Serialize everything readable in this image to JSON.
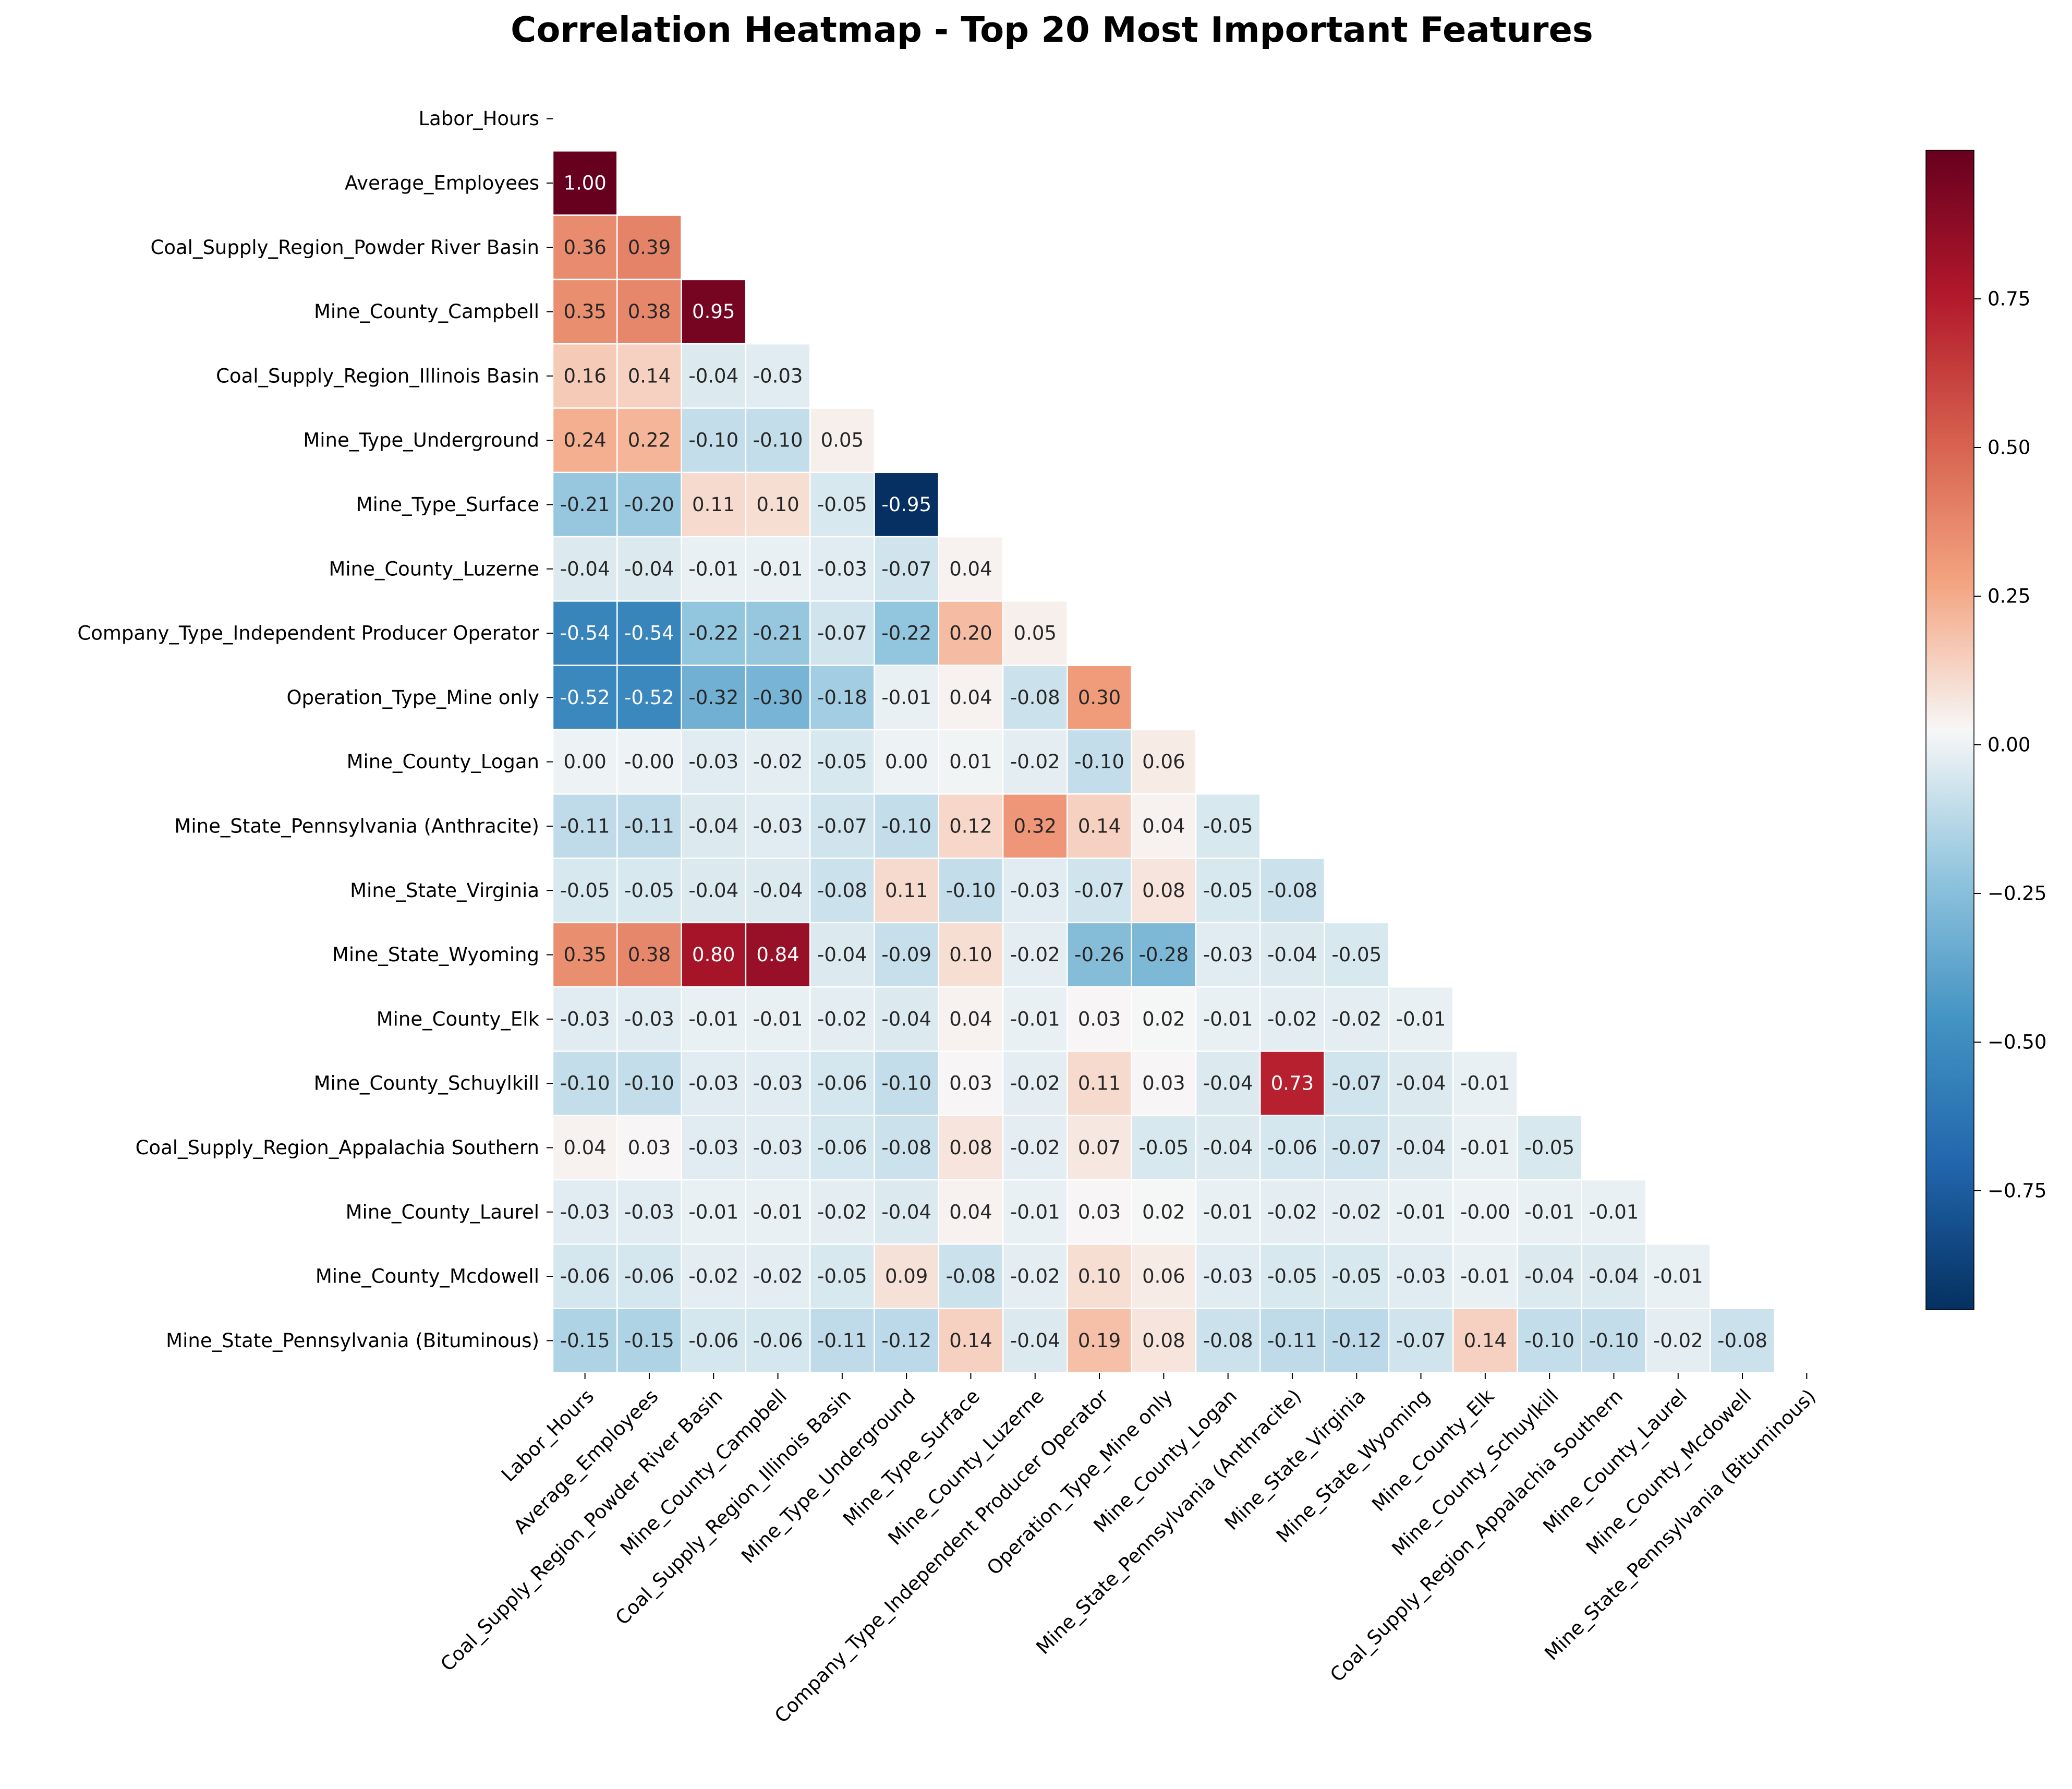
{
  "chart_data": {
    "type": "heatmap",
    "title": "Correlation Heatmap - Top 20 Most Important Features",
    "xlabel": "",
    "ylabel": "",
    "mask": "upper-triangle",
    "labels": [
      "Labor_Hours",
      "Average_Employees",
      "Coal_Supply_Region_Powder River Basin",
      "Mine_County_Campbell",
      "Coal_Supply_Region_Illinois Basin",
      "Mine_Type_Underground",
      "Mine_Type_Surface",
      "Mine_County_Luzerne",
      "Company_Type_Independent Producer Operator",
      "Operation_Type_Mine only",
      "Mine_County_Logan",
      "Mine_State_Pennsylvania (Anthracite)",
      "Mine_State_Virginia",
      "Mine_State_Wyoming",
      "Mine_County_Elk",
      "Mine_County_Schuylkill",
      "Coal_Supply_Region_Appalachia Southern",
      "Mine_County_Laurel",
      "Mine_County_Mcdowell",
      "Mine_State_Pennsylvania (Bituminous)"
    ],
    "rows": [
      [],
      [
        1.0
      ],
      [
        0.36,
        0.39
      ],
      [
        0.35,
        0.38,
        0.95
      ],
      [
        0.16,
        0.14,
        -0.04,
        -0.03
      ],
      [
        0.24,
        0.22,
        -0.1,
        -0.1,
        0.05
      ],
      [
        -0.21,
        -0.2,
        0.11,
        0.1,
        -0.05,
        -0.95
      ],
      [
        -0.04,
        -0.04,
        -0.01,
        -0.01,
        -0.03,
        -0.07,
        0.04
      ],
      [
        -0.54,
        -0.54,
        -0.22,
        -0.21,
        -0.07,
        -0.22,
        0.2,
        0.05
      ],
      [
        -0.52,
        -0.52,
        -0.32,
        -0.3,
        -0.18,
        -0.01,
        0.04,
        -0.08,
        0.3
      ],
      [
        0.0,
        -0.0,
        -0.03,
        -0.02,
        -0.05,
        0.0,
        0.01,
        -0.02,
        -0.1,
        0.06
      ],
      [
        -0.11,
        -0.11,
        -0.04,
        -0.03,
        -0.07,
        -0.1,
        0.12,
        0.32,
        0.14,
        0.04,
        -0.05
      ],
      [
        -0.05,
        -0.05,
        -0.04,
        -0.04,
        -0.08,
        0.11,
        -0.1,
        -0.03,
        -0.07,
        0.08,
        -0.05,
        -0.08
      ],
      [
        0.35,
        0.38,
        0.8,
        0.84,
        -0.04,
        -0.09,
        0.1,
        -0.02,
        -0.26,
        -0.28,
        -0.03,
        -0.04,
        -0.05
      ],
      [
        -0.03,
        -0.03,
        -0.01,
        -0.01,
        -0.02,
        -0.04,
        0.04,
        -0.01,
        0.03,
        0.02,
        -0.01,
        -0.02,
        -0.02,
        -0.01
      ],
      [
        -0.1,
        -0.1,
        -0.03,
        -0.03,
        -0.06,
        -0.1,
        0.03,
        -0.02,
        0.11,
        0.03,
        -0.04,
        0.73,
        -0.07,
        -0.04,
        -0.01
      ],
      [
        0.04,
        0.03,
        -0.03,
        -0.03,
        -0.06,
        -0.08,
        0.08,
        -0.02,
        0.07,
        -0.05,
        -0.04,
        -0.06,
        -0.07,
        -0.04,
        -0.01,
        -0.05
      ],
      [
        -0.03,
        -0.03,
        -0.01,
        -0.01,
        -0.02,
        -0.04,
        0.04,
        -0.01,
        0.03,
        0.02,
        -0.01,
        -0.02,
        -0.02,
        -0.01,
        -0.0,
        -0.01,
        -0.01
      ],
      [
        -0.06,
        -0.06,
        -0.02,
        -0.02,
        -0.05,
        0.09,
        -0.08,
        -0.02,
        0.1,
        0.06,
        -0.03,
        -0.05,
        -0.05,
        -0.03,
        -0.01,
        -0.04,
        -0.04,
        -0.01
      ],
      [
        -0.15,
        -0.15,
        -0.06,
        -0.06,
        -0.11,
        -0.12,
        0.14,
        -0.04,
        0.19,
        0.08,
        -0.08,
        -0.11,
        -0.12,
        -0.07,
        0.14,
        -0.1,
        -0.1,
        -0.02,
        -0.08
      ]
    ],
    "colorbar": {
      "colormap": "RdBu_r",
      "vmin": -0.95,
      "vmax": 1.0,
      "ticks": [
        "0.75",
        "0.50",
        "0.25",
        "0.00",
        "−0.25",
        "−0.50",
        "−0.75"
      ],
      "tick_values": [
        0.75,
        0.5,
        0.25,
        0.0,
        -0.25,
        -0.5,
        -0.75
      ]
    },
    "colors": {
      "background": "#ffffff",
      "cell_border": "#ffffff",
      "text_dark": "#262626",
      "text_light": "#ffffff"
    },
    "grid": false,
    "annotations": true,
    "value_format": "2 decimals, hyphen minus"
  }
}
